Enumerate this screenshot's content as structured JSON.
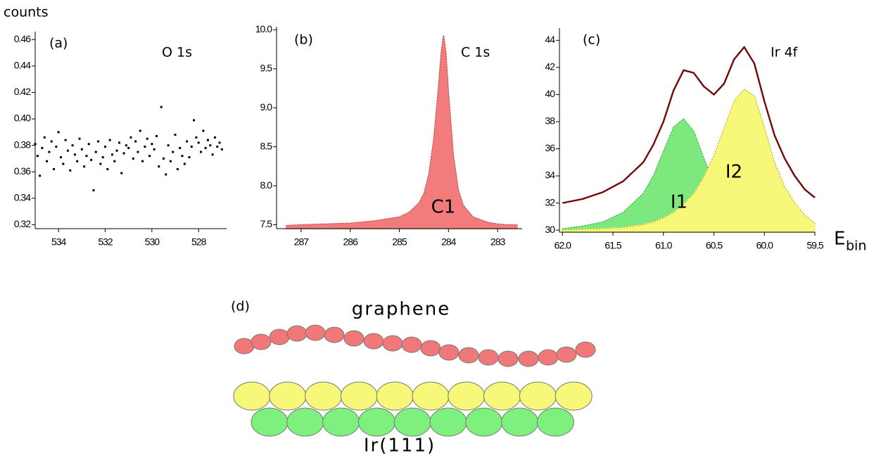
{
  "chart_data": [
    {
      "type": "scatter",
      "panel": "(a)",
      "title": "O 1s",
      "ylabel": "counts",
      "color": "#000000",
      "xlim": [
        535.0,
        526.8
      ],
      "ylim": [
        0.317,
        0.466
      ],
      "xticks": [
        534,
        532,
        530,
        528
      ],
      "yticks": [
        0.32,
        0.34,
        0.36,
        0.38,
        {
          "value": 0.4,
          "label": "0.40"
        },
        0.42,
        0.44,
        0.46
      ],
      "x": [
        535.0,
        534.9,
        534.8,
        534.7,
        534.6,
        534.5,
        534.4,
        534.3,
        534.2,
        534.1,
        534.0,
        533.9,
        533.8,
        533.7,
        533.6,
        533.5,
        533.4,
        533.3,
        533.2,
        533.1,
        533.0,
        532.9,
        532.8,
        532.7,
        532.6,
        532.5,
        532.4,
        532.3,
        532.2,
        532.1,
        532.0,
        531.9,
        531.8,
        531.7,
        531.6,
        531.5,
        531.4,
        531.3,
        531.2,
        531.1,
        531.0,
        530.9,
        530.8,
        530.7,
        530.6,
        530.5,
        530.4,
        530.3,
        530.2,
        530.1,
        530.0,
        529.9,
        529.8,
        529.7,
        529.6,
        529.5,
        529.4,
        529.3,
        529.2,
        529.1,
        529.0,
        528.9,
        528.8,
        528.7,
        528.6,
        528.5,
        528.4,
        528.3,
        528.2,
        528.1,
        528.0,
        527.9,
        527.8,
        527.7,
        527.6,
        527.5,
        527.4,
        527.3,
        527.2,
        527.1,
        527.0
      ],
      "values": [
        0.381,
        0.372,
        0.357,
        0.378,
        0.386,
        0.368,
        0.375,
        0.383,
        0.362,
        0.379,
        0.39,
        0.371,
        0.366,
        0.384,
        0.376,
        0.361,
        0.38,
        0.373,
        0.368,
        0.385,
        0.377,
        0.364,
        0.372,
        0.381,
        0.369,
        0.346,
        0.375,
        0.383,
        0.366,
        0.371,
        0.379,
        0.362,
        0.384,
        0.373,
        0.368,
        0.376,
        0.382,
        0.359,
        0.374,
        0.38,
        0.378,
        0.386,
        0.37,
        0.383,
        0.375,
        0.391,
        0.368,
        0.379,
        0.385,
        0.372,
        0.381,
        0.377,
        0.387,
        0.364,
        0.409,
        0.37,
        0.358,
        0.38,
        0.368,
        0.375,
        0.388,
        0.362,
        0.378,
        0.372,
        0.366,
        0.383,
        0.371,
        0.379,
        0.399,
        0.386,
        0.382,
        0.375,
        0.391,
        0.378,
        0.384,
        0.38,
        0.373,
        0.386,
        0.379,
        0.382,
        0.377
      ]
    },
    {
      "type": "area",
      "panel": "(b)",
      "title": "C 1s",
      "xlim": [
        287.5,
        282.5
      ],
      "ylim": [
        7.45,
        10.04
      ],
      "xticks": [
        287,
        286,
        285,
        284,
        283
      ],
      "yticks": [
        7.5,
        {
          "value": 8,
          "label": "8.0"
        },
        8.5,
        {
          "value": 9,
          "label": "9.0"
        },
        9.5,
        {
          "value": 10,
          "label": "10.0"
        }
      ],
      "x": [
        287.3,
        287,
        286.5,
        286,
        285.5,
        285,
        284.8,
        284.6,
        284.5,
        284.4,
        284.3,
        284.2,
        284.15,
        284.1,
        284.05,
        284.0,
        283.9,
        283.8,
        283.7,
        283.5,
        283.2,
        283,
        282.8,
        282.6
      ],
      "series": [
        {
          "name": "C1",
          "kind": "area",
          "color": "#f27b7b",
          "values": [
            7.49,
            7.5,
            7.51,
            7.52,
            7.55,
            7.6,
            7.66,
            7.78,
            7.9,
            8.15,
            8.6,
            9.3,
            9.7,
            9.93,
            9.7,
            9.2,
            8.4,
            7.95,
            7.75,
            7.6,
            7.53,
            7.51,
            7.5,
            7.5
          ]
        }
      ]
    },
    {
      "type": "area",
      "panel": "(c)",
      "title": "Ir 4f",
      "xlabel": "E",
      "xlabel_sub": "bin",
      "xlim": [
        62.03,
        59.5
      ],
      "ylim": [
        29.85,
        44.9
      ],
      "xticks": [
        {
          "value": 62,
          "label": "62.0"
        },
        61.5,
        {
          "value": 61,
          "label": "61.0"
        },
        60.5,
        {
          "value": 60,
          "label": "60.0"
        },
        59.5
      ],
      "yticks": [
        30,
        32,
        34,
        36,
        38,
        40,
        42,
        44
      ],
      "x": [
        62.0,
        61.8,
        61.6,
        61.4,
        61.2,
        61.1,
        61.0,
        60.9,
        60.8,
        60.7,
        60.6,
        60.5,
        60.4,
        60.3,
        60.2,
        60.1,
        60.0,
        59.9,
        59.8,
        59.7,
        59.6,
        59.5
      ],
      "series": [
        {
          "name": "I1",
          "kind": "area",
          "color": "#7de87d",
          "values": [
            30.1,
            30.3,
            30.6,
            31.3,
            32.7,
            34.0,
            35.8,
            37.6,
            38.2,
            37.3,
            35.3,
            33.5,
            32.3,
            31.6,
            31.2,
            30.9,
            30.6,
            30.4,
            30.3,
            30.2,
            30.15,
            30.1
          ]
        },
        {
          "name": "I2",
          "kind": "area",
          "color": "#f7f77a",
          "values": [
            30.0,
            30.05,
            30.1,
            30.2,
            30.4,
            30.6,
            30.9,
            31.3,
            31.9,
            32.7,
            33.9,
            35.5,
            37.5,
            39.5,
            40.4,
            39.9,
            37.6,
            35.0,
            33.2,
            32.0,
            31.1,
            30.5
          ]
        },
        {
          "kind": "line",
          "color": "#8b1010",
          "values": [
            32.0,
            32.3,
            32.8,
            33.6,
            35.0,
            36.3,
            38.0,
            40.3,
            41.8,
            41.6,
            40.6,
            40.0,
            40.8,
            42.6,
            43.5,
            42.3,
            39.5,
            37.0,
            35.3,
            34.0,
            33.0,
            32.4
          ]
        }
      ]
    }
  ],
  "diagram": {
    "panel": "(d)",
    "top_label": "graphene",
    "bottom_label": "Ir(111)"
  }
}
